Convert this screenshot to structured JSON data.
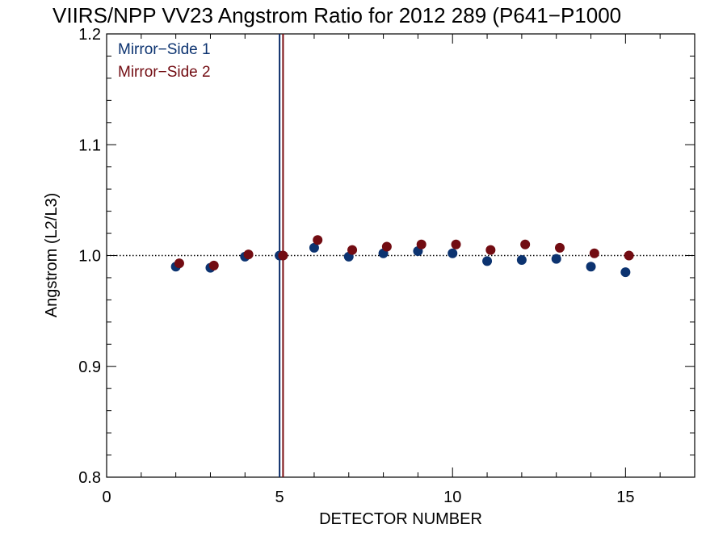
{
  "chart_data": {
    "type": "scatter",
    "title": "VIIRS/NPP VV23 Angstrom Ratio for 2012 289 (P641−P1000",
    "xlabel": "DETECTOR NUMBER",
    "ylabel": "Angstrom (L2/L3)",
    "xlim": [
      0,
      17
    ],
    "ylim": [
      0.8,
      1.2
    ],
    "x_ticks": [
      0,
      5,
      10,
      15
    ],
    "y_ticks": [
      0.8,
      0.9,
      1.0,
      1.1,
      1.2
    ],
    "x_tick_labels": [
      "0",
      "5",
      "10",
      "15"
    ],
    "y_tick_labels": [
      "0.8",
      "0.9",
      "1.0",
      "1.1",
      "1.2"
    ],
    "reference_line": {
      "y": 1.0,
      "style": "dotted"
    },
    "vertical_lines": [
      {
        "x": 5.0,
        "color": "#0c2e6b"
      },
      {
        "x": 5.1,
        "color": "#7a0e12"
      }
    ],
    "legend": {
      "placement": "top-left"
    },
    "series": [
      {
        "name": "Mirror−Side 1",
        "color": "#0c3370",
        "x": [
          2,
          3,
          4,
          5,
          6,
          7,
          8,
          9,
          10,
          11,
          12,
          13,
          14,
          15
        ],
        "y": [
          0.99,
          0.989,
          0.999,
          1.0,
          1.007,
          0.999,
          1.002,
          1.004,
          1.002,
          0.995,
          0.996,
          0.997,
          0.99,
          0.985
        ]
      },
      {
        "name": "Mirror−Side 2",
        "color": "#720c12",
        "x": [
          2.1,
          3.1,
          4.1,
          5.1,
          6.1,
          7.1,
          8.1,
          9.1,
          10.1,
          11.1,
          12.1,
          13.1,
          14.1,
          15.1
        ],
        "y": [
          0.993,
          0.991,
          1.001,
          1.0,
          1.014,
          1.005,
          1.008,
          1.01,
          1.01,
          1.005,
          1.01,
          1.007,
          1.002,
          1.0
        ]
      }
    ]
  }
}
